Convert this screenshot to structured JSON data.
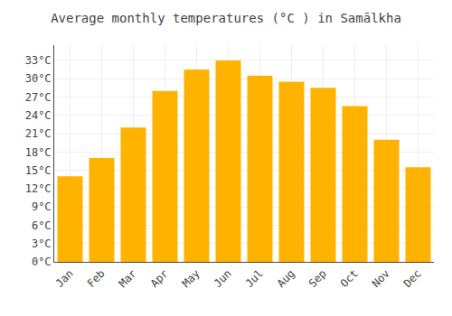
{
  "chart_data": {
    "type": "bar",
    "title": "Average monthly temperatures (°C ) in Samālkha",
    "categories": [
      "Jan",
      "Feb",
      "Mar",
      "Apr",
      "May",
      "Jun",
      "Jul",
      "Aug",
      "Sep",
      "Oct",
      "Nov",
      "Dec"
    ],
    "values": [
      14,
      17,
      22,
      28,
      31.5,
      33,
      30.5,
      29.5,
      28.5,
      25.5,
      20,
      15.5
    ],
    "color": "#FFB300",
    "ylim": [
      0,
      35.5
    ],
    "yticks": [
      {
        "value": 0,
        "label": "0°C"
      },
      {
        "value": 3,
        "label": "3°C"
      },
      {
        "value": 6,
        "label": "6°C"
      },
      {
        "value": 9,
        "label": "9°C"
      },
      {
        "value": 12,
        "label": "12°C"
      },
      {
        "value": 15,
        "label": "15°C"
      },
      {
        "value": 18,
        "label": "18°C"
      },
      {
        "value": 21,
        "label": "21°C"
      },
      {
        "value": 24,
        "label": "24°C"
      },
      {
        "value": 27,
        "label": "27°C"
      },
      {
        "value": 30,
        "label": "30°C"
      },
      {
        "value": 33,
        "label": "33°C"
      }
    ],
    "grid": true
  }
}
